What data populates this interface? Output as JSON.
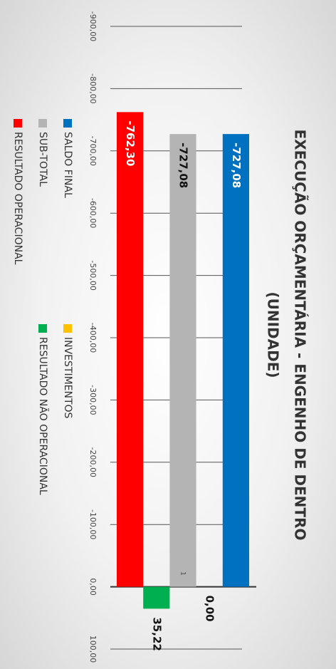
{
  "chart_data": {
    "type": "bar",
    "title": "EXECUÇÃO ORÇAMENTÁRIA - ENGENHO DE DENTRO",
    "subtitle": "(UNIDADE)",
    "categories": [
      "1"
    ],
    "series": [
      {
        "name": "SALDO FINAL",
        "color": "#0070c0",
        "values": [
          -727.08
        ],
        "value_labels": [
          "-727,08"
        ]
      },
      {
        "name": "INVESTIMENTOS",
        "color": "#ffc000",
        "values": [
          0
        ],
        "value_labels": [
          "0,00"
        ]
      },
      {
        "name": "SUB-TOTAL",
        "color": "#b4b4b4",
        "values": [
          -727.08
        ],
        "value_labels": [
          "-727,08"
        ]
      },
      {
        "name": "RESULTADO NÃO OPERACIONAL",
        "color": "#00b050",
        "values": [
          35.22
        ],
        "value_labels": [
          "35,22"
        ]
      },
      {
        "name": "RESULTADO OPERACIONAL",
        "color": "#ff0000",
        "values": [
          -762.3
        ],
        "value_labels": [
          "-762,30"
        ]
      }
    ],
    "ylim": [
      -900,
      100
    ],
    "yticks": [
      {
        "value": -900,
        "label": "-900,00"
      },
      {
        "value": -800,
        "label": "-800,00"
      },
      {
        "value": -700,
        "label": "-700,00"
      },
      {
        "value": -600,
        "label": "-600,00"
      },
      {
        "value": -500,
        "label": "-500,00"
      },
      {
        "value": -400,
        "label": "-400,00"
      },
      {
        "value": -300,
        "label": "-300,00"
      },
      {
        "value": -200,
        "label": "-200,00"
      },
      {
        "value": -100,
        "label": "-100,00"
      },
      {
        "value": 0,
        "label": "0,00"
      },
      {
        "value": 100,
        "label": "100,00"
      }
    ],
    "grid": true,
    "legend": "bottom"
  }
}
